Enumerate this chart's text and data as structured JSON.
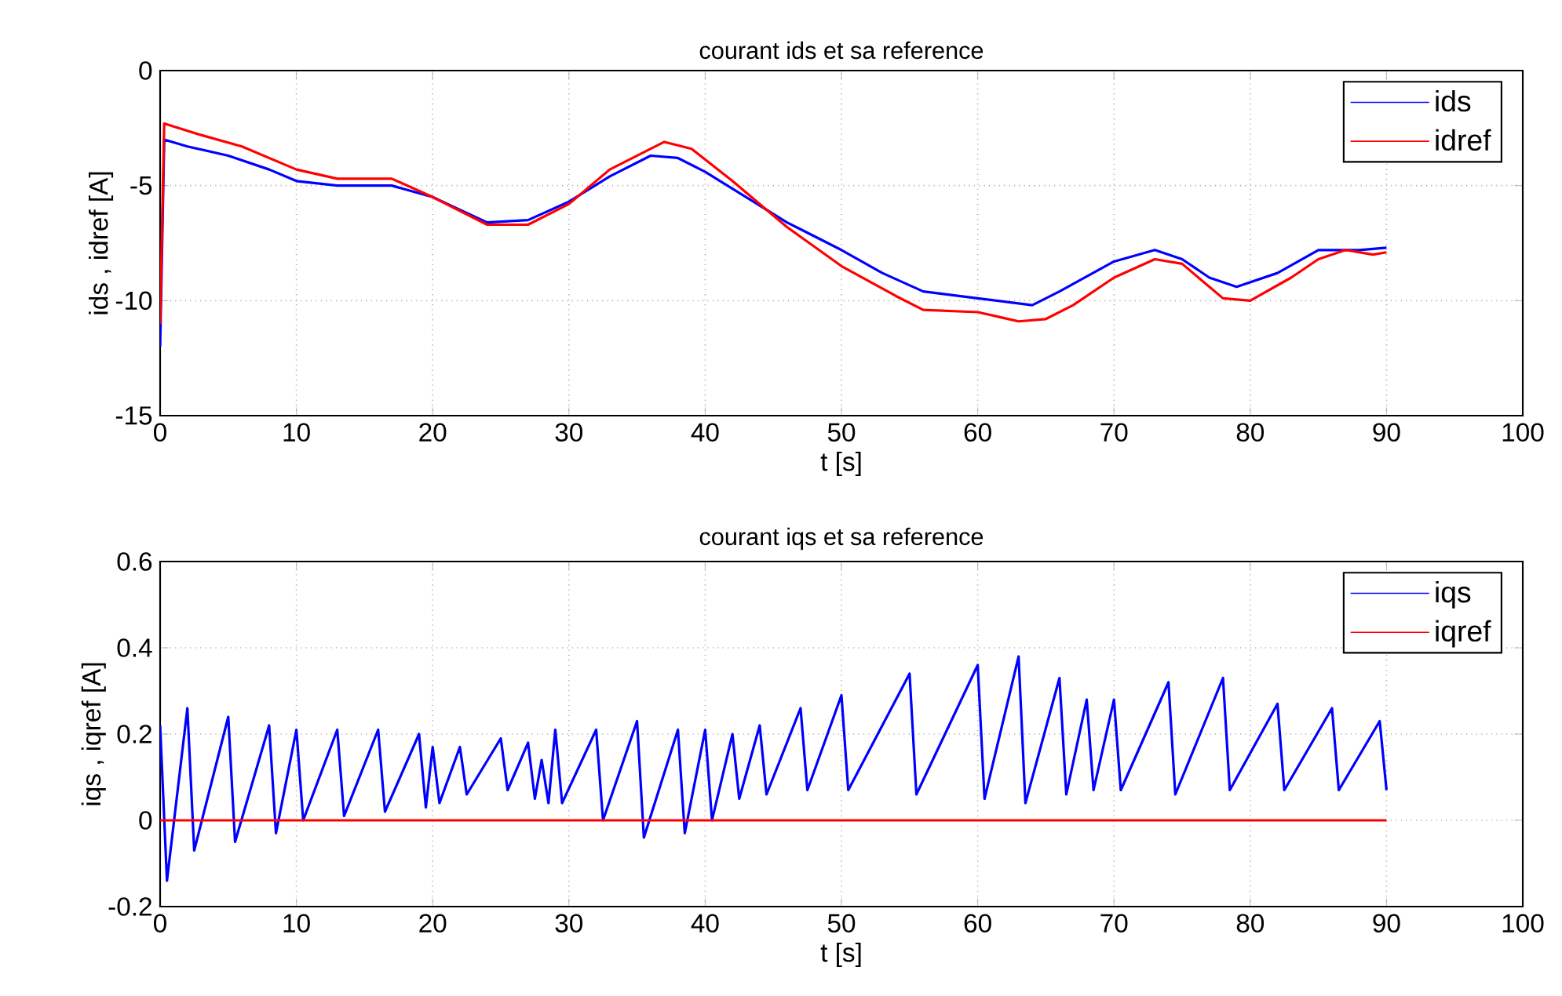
{
  "chart_data": [
    {
      "type": "line",
      "title": "courant ids et sa reference",
      "xlabel": "t [s]",
      "ylabel": "ids , idref [A]",
      "xlim": [
        0,
        100
      ],
      "xticks": [
        0,
        10,
        20,
        30,
        40,
        50,
        60,
        70,
        80,
        90,
        100
      ],
      "ylim": [
        -15,
        0
      ],
      "yticks": [
        -15,
        -10,
        -5,
        0
      ],
      "grid": true,
      "legend": "top right",
      "series": [
        {
          "name": "ids",
          "color": "#0000ff",
          "x": [
            0,
            0.3,
            2,
            5,
            8,
            10,
            13,
            17,
            20,
            24,
            27,
            30,
            33,
            36,
            38,
            40,
            43,
            46,
            50,
            53,
            56,
            60,
            64,
            66,
            70,
            73,
            75,
            77,
            79,
            82,
            85,
            88,
            90
          ],
          "values": [
            -12,
            -3.0,
            -3.3,
            -3.7,
            -4.3,
            -4.8,
            -5.0,
            -5.0,
            -5.5,
            -6.6,
            -6.5,
            -5.7,
            -4.6,
            -3.7,
            -3.8,
            -4.4,
            -5.5,
            -6.6,
            -7.8,
            -8.8,
            -9.6,
            -9.9,
            -10.2,
            -9.6,
            -8.3,
            -7.8,
            -8.2,
            -9.0,
            -9.4,
            -8.8,
            -7.8,
            -7.8,
            -7.7
          ]
        },
        {
          "name": "idref",
          "color": "#ff0000",
          "x": [
            0,
            0.3,
            3,
            6,
            10,
            13,
            17,
            20,
            24,
            27,
            30,
            33,
            37,
            39,
            42,
            46,
            50,
            54,
            56,
            60,
            63,
            65,
            67,
            70,
            73,
            75,
            78,
            80,
            83,
            85,
            87,
            89,
            90
          ],
          "values": [
            -11,
            -2.3,
            -2.8,
            -3.3,
            -4.3,
            -4.7,
            -4.7,
            -5.5,
            -6.7,
            -6.7,
            -5.8,
            -4.3,
            -3.1,
            -3.4,
            -4.8,
            -6.8,
            -8.5,
            -9.8,
            -10.4,
            -10.5,
            -10.9,
            -10.8,
            -10.2,
            -9.0,
            -8.2,
            -8.4,
            -9.9,
            -10.0,
            -9.0,
            -8.2,
            -7.8,
            -8.0,
            -7.9
          ]
        }
      ]
    },
    {
      "type": "line",
      "title": "courant iqs et sa reference",
      "xlabel": "t [s]",
      "ylabel": "iqs , iqref [A]",
      "xlim": [
        0,
        100
      ],
      "xticks": [
        0,
        10,
        20,
        30,
        40,
        50,
        60,
        70,
        80,
        90,
        100
      ],
      "ylim": [
        -0.2,
        0.6
      ],
      "yticks": [
        -0.2,
        0,
        0.2,
        0.4,
        0.6
      ],
      "grid": true,
      "legend": "top right",
      "series": [
        {
          "name": "iqs",
          "color": "#0000ff",
          "x": [
            0,
            0.5,
            2,
            2.5,
            5,
            5.5,
            8,
            8.5,
            10,
            10.5,
            13,
            13.5,
            16,
            16.5,
            19,
            19.5,
            20,
            20.5,
            22,
            22.5,
            25,
            25.5,
            27,
            27.5,
            28,
            28.5,
            29,
            29.5,
            32,
            32.5,
            35,
            35.5,
            38,
            38.5,
            40,
            40.5,
            42,
            42.5,
            44,
            44.5,
            47,
            47.5,
            50,
            50.5,
            55,
            55.5,
            60,
            60.5,
            63,
            63.5,
            66,
            66.5,
            68,
            68.5,
            70,
            70.5,
            74,
            74.5,
            78,
            78.5,
            82,
            82.5,
            86,
            86.5,
            89.5,
            90
          ],
          "values": [
            0.22,
            -0.14,
            0.26,
            -0.07,
            0.24,
            -0.05,
            0.22,
            -0.03,
            0.21,
            0.0,
            0.21,
            0.01,
            0.21,
            0.02,
            0.2,
            0.03,
            0.17,
            0.04,
            0.17,
            0.06,
            0.19,
            0.07,
            0.18,
            0.05,
            0.14,
            0.04,
            0.21,
            0.04,
            0.21,
            0.0,
            0.23,
            -0.04,
            0.21,
            -0.03,
            0.21,
            0.0,
            0.2,
            0.05,
            0.22,
            0.06,
            0.26,
            0.07,
            0.29,
            0.07,
            0.34,
            0.06,
            0.36,
            0.05,
            0.38,
            0.04,
            0.33,
            0.06,
            0.28,
            0.07,
            0.28,
            0.07,
            0.32,
            0.06,
            0.33,
            0.07,
            0.27,
            0.07,
            0.26,
            0.07,
            0.23,
            0.07
          ]
        },
        {
          "name": "iqref",
          "color": "#ff0000",
          "x": [
            0,
            90
          ],
          "values": [
            0,
            0
          ]
        }
      ]
    }
  ]
}
